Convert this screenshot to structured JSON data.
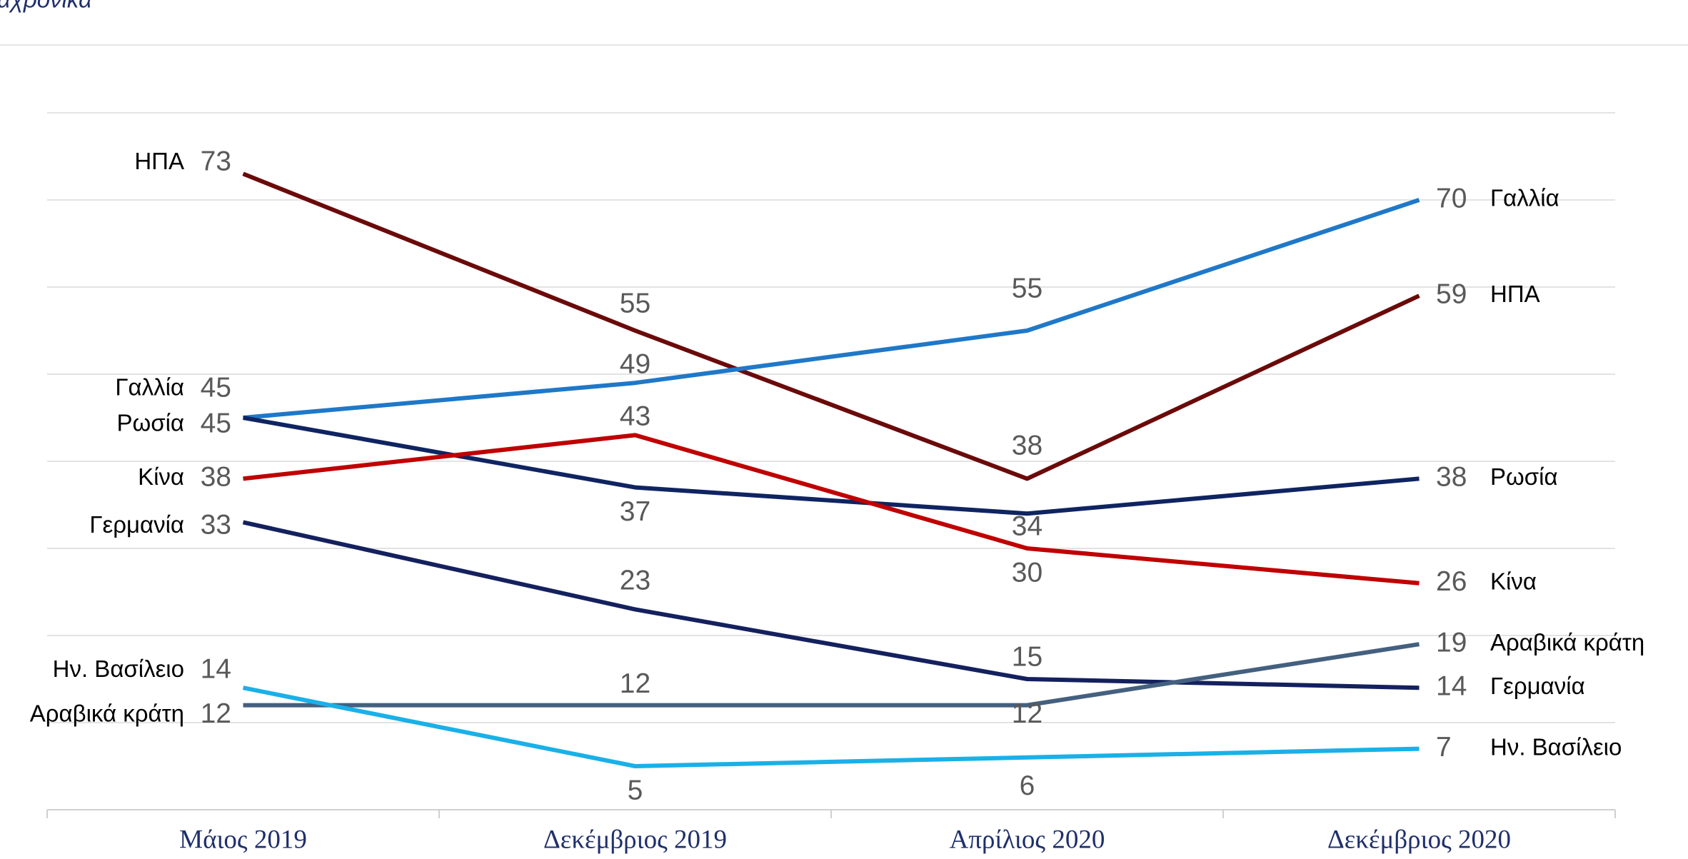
{
  "chart_data": {
    "type": "line",
    "subtitle": "αχρονικά",
    "categories": [
      "Μάιος 2019",
      "Δεκέμβριος 2019",
      "Απρίλιος 2020",
      "Δεκέμβριος 2020"
    ],
    "series": [
      {
        "name": "ΗΠΑ",
        "color": "#6b0a0a",
        "values": [
          73,
          55,
          38,
          59
        ]
      },
      {
        "name": "Γαλλία",
        "color": "#1f78c8",
        "values": [
          45,
          49,
          55,
          70
        ]
      },
      {
        "name": "Ρωσία",
        "color": "#0f2461",
        "values": [
          45,
          37,
          34,
          38
        ]
      },
      {
        "name": "Κίνα",
        "color": "#c00000",
        "values": [
          38,
          43,
          30,
          26
        ]
      },
      {
        "name": "Γερμανία",
        "color": "#14215e",
        "values": [
          33,
          23,
          15,
          14
        ]
      },
      {
        "name": "Αραβικά κράτη",
        "color": "#44607f",
        "values": [
          12,
          12,
          12,
          19
        ]
      },
      {
        "name": "Ην. Βασίλειο",
        "color": "#1ab0e8",
        "values": [
          14,
          5,
          6,
          7
        ]
      }
    ],
    "ylim": [
      0,
      80
    ],
    "yticks": [
      0,
      10,
      20,
      30,
      40,
      50,
      60,
      70,
      80
    ],
    "grid": true
  }
}
